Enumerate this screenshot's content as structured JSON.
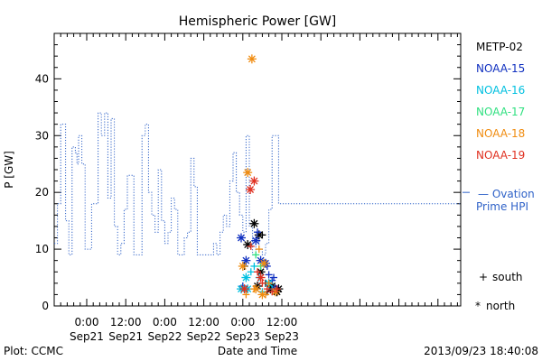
{
  "chart_data": {
    "type": "scatter",
    "title": "Hemispheric Power [GW]",
    "xlabel": "Date and Time",
    "ylabel": "P [GW]",
    "ylim": [
      0,
      48
    ],
    "xlim": [
      -10,
      115
    ],
    "x_unit": "hours from Sep21 00:00",
    "yticks": [
      0,
      10,
      20,
      30,
      40
    ],
    "xticks": [
      {
        "hour": 0,
        "time": "0:00",
        "day": "Sep21"
      },
      {
        "hour": 12,
        "time": "12:00",
        "day": "Sep21"
      },
      {
        "hour": 24,
        "time": "0:00",
        "day": "Sep22"
      },
      {
        "hour": 36,
        "time": "12:00",
        "day": "Sep22"
      },
      {
        "hour": 48,
        "time": "0:00",
        "day": "Sep23"
      },
      {
        "hour": 60,
        "time": "12:00",
        "day": "Sep23"
      }
    ],
    "ovation": {
      "label_line1": "— Ovation",
      "label_line2": "Prime HPI",
      "color": "#2f62c8",
      "current_value": 20,
      "steps": [
        [
          -10,
          11
        ],
        [
          -9,
          18
        ],
        [
          -8,
          32
        ],
        [
          -6.5,
          15
        ],
        [
          -5.5,
          9
        ],
        [
          -4.5,
          28
        ],
        [
          -3.5,
          27
        ],
        [
          -3,
          25
        ],
        [
          -2.5,
          30
        ],
        [
          -1.5,
          25
        ],
        [
          -0.5,
          10
        ],
        [
          1.5,
          18
        ],
        [
          3.5,
          34
        ],
        [
          4.5,
          30
        ],
        [
          5.5,
          34
        ],
        [
          6.5,
          19
        ],
        [
          7.5,
          33
        ],
        [
          8.5,
          14
        ],
        [
          9.5,
          9
        ],
        [
          10.5,
          11
        ],
        [
          11.5,
          17
        ],
        [
          12.5,
          23
        ],
        [
          14.5,
          9
        ],
        [
          16,
          9
        ],
        [
          17,
          30
        ],
        [
          18,
          32
        ],
        [
          19,
          20
        ],
        [
          20,
          16
        ],
        [
          21,
          13
        ],
        [
          22,
          24
        ],
        [
          23,
          15
        ],
        [
          24,
          11
        ],
        [
          25,
          13
        ],
        [
          26,
          19
        ],
        [
          27,
          17
        ],
        [
          28,
          9
        ],
        [
          29,
          9
        ],
        [
          30,
          12
        ],
        [
          31,
          13
        ],
        [
          32,
          26
        ],
        [
          33,
          21
        ],
        [
          34,
          9
        ],
        [
          35,
          9
        ],
        [
          36,
          9
        ],
        [
          37,
          9
        ],
        [
          38,
          9
        ],
        [
          39,
          11
        ],
        [
          40,
          9
        ],
        [
          41,
          13
        ],
        [
          42,
          16
        ],
        [
          43,
          14
        ],
        [
          44,
          22
        ],
        [
          45,
          27
        ],
        [
          46,
          20
        ],
        [
          47,
          16
        ],
        [
          48,
          13
        ],
        [
          49,
          30
        ],
        [
          50,
          14
        ],
        [
          51,
          9
        ],
        [
          52,
          12
        ],
        [
          53,
          10
        ],
        [
          54,
          9
        ],
        [
          55,
          11
        ],
        [
          56,
          17
        ],
        [
          57,
          30
        ],
        [
          58,
          30
        ],
        [
          59,
          18
        ]
      ]
    },
    "series": [
      {
        "name": "METP-02",
        "color": "#000000",
        "points": [
          {
            "x": 48.5,
            "y": 7,
            "m": "south"
          },
          {
            "x": 49.5,
            "y": 10.8,
            "m": "north"
          },
          {
            "x": 51.5,
            "y": 14.5,
            "m": "north"
          },
          {
            "x": 53,
            "y": 12.5,
            "m": "north"
          },
          {
            "x": 54,
            "y": 12.5,
            "m": "south"
          },
          {
            "x": 52.5,
            "y": 3.5,
            "m": "north"
          },
          {
            "x": 55,
            "y": 4,
            "m": "south"
          },
          {
            "x": 55.5,
            "y": 2.5,
            "m": "south"
          },
          {
            "x": 56.5,
            "y": 3,
            "m": "north"
          },
          {
            "x": 58.5,
            "y": 2.5,
            "m": "north"
          },
          {
            "x": 59,
            "y": 3,
            "m": "north"
          },
          {
            "x": 53.5,
            "y": 6,
            "m": "north"
          },
          {
            "x": 57,
            "y": 3.5,
            "m": "north"
          }
        ]
      },
      {
        "name": "NOAA-15",
        "color": "#1030c0",
        "points": [
          {
            "x": 47.5,
            "y": 12,
            "m": "north"
          },
          {
            "x": 49,
            "y": 8,
            "m": "north"
          },
          {
            "x": 52,
            "y": 11.5,
            "m": "north"
          },
          {
            "x": 52.5,
            "y": 13,
            "m": "south"
          },
          {
            "x": 53.5,
            "y": 8,
            "m": "north"
          },
          {
            "x": 55,
            "y": 7.5,
            "m": "north"
          },
          {
            "x": 55.5,
            "y": 7,
            "m": "south"
          },
          {
            "x": 56,
            "y": 5.5,
            "m": "south"
          },
          {
            "x": 57,
            "y": 4.5,
            "m": "south"
          },
          {
            "x": 57.5,
            "y": 5,
            "m": "south"
          },
          {
            "x": 58,
            "y": 3,
            "m": "north"
          },
          {
            "x": 48,
            "y": 3.5,
            "m": "south"
          }
        ]
      },
      {
        "name": "NOAA-16",
        "color": "#00c0e0",
        "points": [
          {
            "x": 49,
            "y": 5,
            "m": "north"
          },
          {
            "x": 49.5,
            "y": 3,
            "m": "north"
          },
          {
            "x": 50.5,
            "y": 6,
            "m": "south"
          },
          {
            "x": 51.5,
            "y": 7,
            "m": "south"
          },
          {
            "x": 53,
            "y": 5,
            "m": "south"
          },
          {
            "x": 54,
            "y": 2.5,
            "m": "south"
          },
          {
            "x": 56,
            "y": 4,
            "m": "north"
          },
          {
            "x": 57,
            "y": 3,
            "m": "south"
          },
          {
            "x": 47.5,
            "y": 3,
            "m": "north"
          }
        ]
      },
      {
        "name": "NOAA-17",
        "color": "#30e080",
        "points": [
          {
            "x": 52,
            "y": 9,
            "m": "south"
          },
          {
            "x": 53.5,
            "y": 7,
            "m": "south"
          }
        ]
      },
      {
        "name": "NOAA-18",
        "color": "#f08c10",
        "points": [
          {
            "x": 48,
            "y": 7,
            "m": "north"
          },
          {
            "x": 49.5,
            "y": 23.5,
            "m": "north"
          },
          {
            "x": 50.8,
            "y": 43.5,
            "m": "north"
          },
          {
            "x": 49,
            "y": 2,
            "m": "south"
          },
          {
            "x": 51.5,
            "y": 3,
            "m": "south"
          },
          {
            "x": 53,
            "y": 10,
            "m": "south"
          },
          {
            "x": 54,
            "y": 2,
            "m": "north"
          },
          {
            "x": 55,
            "y": 2,
            "m": "south"
          },
          {
            "x": 56,
            "y": 4,
            "m": "south"
          },
          {
            "x": 58,
            "y": 2.5,
            "m": "north"
          },
          {
            "x": 54.5,
            "y": 7.5,
            "m": "north"
          },
          {
            "x": 52,
            "y": 3,
            "m": "north"
          }
        ]
      },
      {
        "name": "NOAA-19",
        "color": "#e03020",
        "points": [
          {
            "x": 50.3,
            "y": 20.5,
            "m": "north"
          },
          {
            "x": 51.5,
            "y": 22,
            "m": "north"
          },
          {
            "x": 48.5,
            "y": 3,
            "m": "north"
          },
          {
            "x": 50.5,
            "y": 10.5,
            "m": "south"
          },
          {
            "x": 52.5,
            "y": 6,
            "m": "south"
          },
          {
            "x": 53.5,
            "y": 5,
            "m": "north"
          },
          {
            "x": 55.5,
            "y": 3,
            "m": "south"
          },
          {
            "x": 57,
            "y": 2.5,
            "m": "south"
          },
          {
            "x": 58.5,
            "y": 3,
            "m": "south"
          },
          {
            "x": 54,
            "y": 4,
            "m": "south"
          }
        ]
      }
    ],
    "marker_legend": {
      "south_symbol": "+",
      "south": "south",
      "north_symbol": "*",
      "north": "north"
    }
  },
  "footer": {
    "plot_label": "Plot: CCMC",
    "timestamp": "2013/09/23 18:40:08"
  }
}
